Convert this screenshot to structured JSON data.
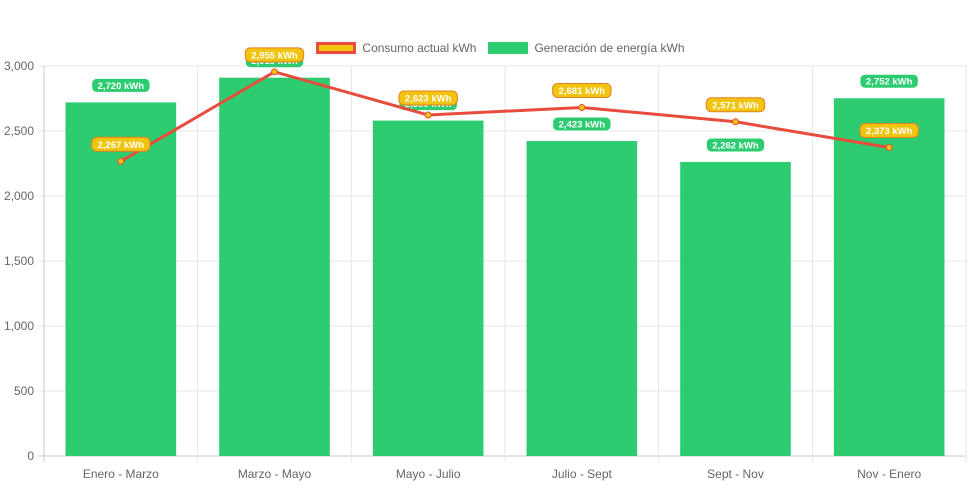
{
  "chart_data": {
    "type": "bar",
    "categories": [
      "Enero - Marzo",
      "Marzo - Mayo",
      "Mayo - Julio",
      "Julio - Sept",
      "Sept - Nov",
      "Nov - Enero"
    ],
    "ylim": [
      0,
      3000
    ],
    "yticks": [
      0,
      500,
      1000,
      1500,
      2000,
      2500,
      3000
    ],
    "ytick_labels": [
      "0",
      "500",
      "1,000",
      "1,500",
      "2,000",
      "2,500",
      "3,000"
    ],
    "grid": true,
    "legend_position": "top",
    "series": [
      {
        "name": "Generación de energía kWh",
        "type": "bar",
        "color": "#2ecc71",
        "values": [
          2720,
          2910,
          2580,
          2423,
          2262,
          2752
        ],
        "labels": [
          "2,720 kWh",
          "2,910 kWh",
          "2,580 kWh",
          "2,423 kWh",
          "2,262 kWh",
          "2,752 kWh"
        ]
      },
      {
        "name": "Consumo actual kWh",
        "type": "line",
        "color": "#e74c3c",
        "point_color": "#f1c40f",
        "values": [
          2267,
          2955,
          2623,
          2681,
          2571,
          2373
        ],
        "labels": [
          "2,267 kWh",
          "2,955 kWh",
          "2,623 kWh",
          "2,681 kWh",
          "2,571 kWh",
          "2,373 kWh"
        ]
      }
    ]
  }
}
